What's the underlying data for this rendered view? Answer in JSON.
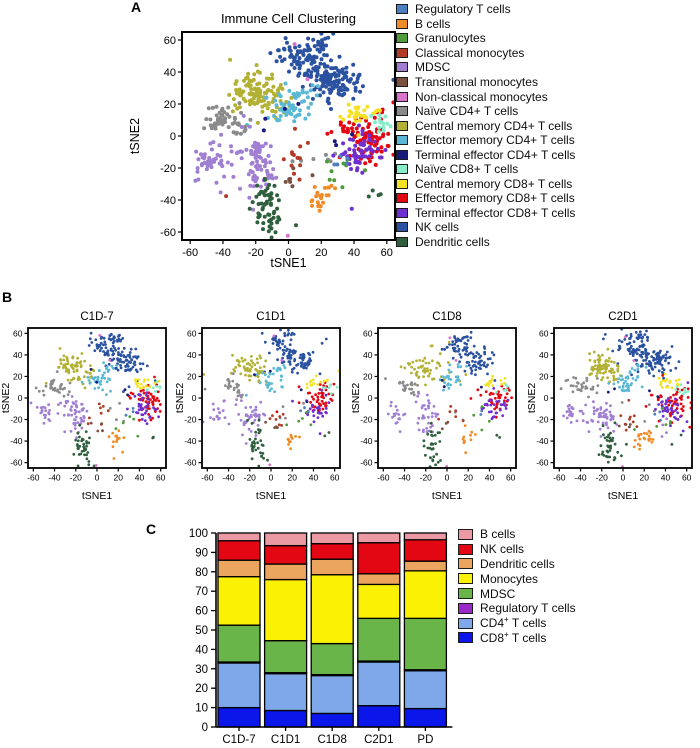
{
  "figure": {
    "panel_a_label": "A",
    "panel_b_label": "B",
    "panel_c_label": "C",
    "background": "#ffffff"
  },
  "cell_colors": {
    "regulatory_t": "#4d7ec0",
    "b_cells": "#f08c28",
    "granulocytes": "#4f9a3b",
    "classical_mono": "#b23b28",
    "mdsc": "#a07fd2",
    "transitional_mono": "#7a5140",
    "nonclassical_mono": "#d873cc",
    "naive_cd4": "#8a8a8a",
    "cm_cd4": "#b3b134",
    "em_cd4": "#5bb8d4",
    "te_cd4": "#181a7a",
    "naive_cd8": "#86ecc8",
    "cm_cd8": "#f5e223",
    "em_cd8": "#e30613",
    "te_cd8": "#6f2fd0",
    "nk": "#2a52a0",
    "dendritic": "#2f5f3d"
  },
  "legend_a": [
    {
      "key": "regulatory_t",
      "label": "Regulatory T cells"
    },
    {
      "key": "b_cells",
      "label": "B cells"
    },
    {
      "key": "granulocytes",
      "label": "Granulocytes"
    },
    {
      "key": "classical_mono",
      "label": "Classical monocytes"
    },
    {
      "key": "mdsc",
      "label": "MDSC"
    },
    {
      "key": "transitional_mono",
      "label": "Transitional monocytes"
    },
    {
      "key": "nonclassical_mono",
      "label": "Non-classical monocytes"
    },
    {
      "key": "naive_cd4",
      "label": "Naïve CD4+ T cells"
    },
    {
      "key": "cm_cd4",
      "label": "Central memory CD4+ T cells"
    },
    {
      "key": "em_cd4",
      "label": "Effector memory CD4+ T cells"
    },
    {
      "key": "te_cd4",
      "label": "Terminal effector CD4+ T cells"
    },
    {
      "key": "naive_cd8",
      "label": "Naïve CD8+ T cells"
    },
    {
      "key": "cm_cd8",
      "label": "Central memory CD8+ T cells"
    },
    {
      "key": "em_cd8",
      "label": "Effector memory CD8+ T cells"
    },
    {
      "key": "te_cd8",
      "label": "Terminal effector CD8+ T cells"
    },
    {
      "key": "nk",
      "label": "NK cells"
    },
    {
      "key": "dendritic",
      "label": "Dendritic cells"
    }
  ],
  "tsne_clusters": [
    [
      "nk",
      6,
      51,
      6,
      4.5,
      50
    ],
    [
      "nk",
      15,
      42,
      5,
      4.5,
      40
    ],
    [
      "nk",
      28,
      34,
      7,
      5.5,
      110
    ],
    [
      "nk",
      19,
      56,
      4,
      3,
      22
    ],
    [
      "cm_cd4",
      -22,
      29,
      8,
      6,
      100
    ],
    [
      "cm_cd4",
      -9,
      20,
      5,
      4,
      22
    ],
    [
      "em_cd4",
      1,
      17,
      7,
      5,
      50
    ],
    [
      "em_cd4",
      9,
      27,
      4,
      3,
      14
    ],
    [
      "naive_cd4",
      -40,
      12,
      6,
      4,
      40
    ],
    [
      "naive_cd4",
      -29,
      6,
      4,
      3,
      12
    ],
    [
      "naive_cd4",
      14,
      -14,
      9,
      6,
      7
    ],
    [
      "mdsc",
      -50,
      -13,
      4,
      5,
      34
    ],
    [
      "mdsc",
      -18,
      -17,
      4.5,
      8,
      65
    ],
    [
      "mdsc",
      -34,
      -24,
      8,
      7,
      13
    ],
    [
      "mdsc",
      -27,
      -7,
      6,
      4,
      8
    ],
    [
      "dendritic",
      -14,
      -42,
      4,
      8,
      55
    ],
    [
      "dendritic",
      -8,
      -57,
      4,
      3,
      9
    ],
    [
      "dendritic",
      50,
      -36,
      4,
      2,
      4
    ],
    [
      "em_cd8",
      49,
      -2,
      6,
      7,
      75
    ],
    [
      "em_cd8",
      34,
      3,
      4,
      4,
      10
    ],
    [
      "te_cd8",
      44,
      -10,
      6,
      6,
      60
    ],
    [
      "cm_cd8",
      41,
      14,
      4,
      3,
      24
    ],
    [
      "cm_cd8",
      52,
      16,
      2,
      2,
      6
    ],
    [
      "naive_cd8",
      56,
      9,
      3,
      3,
      14
    ],
    [
      "b_cells",
      17,
      -40,
      3,
      5,
      20
    ],
    [
      "b_cells",
      25,
      -34,
      2,
      2,
      4
    ],
    [
      "classical_mono",
      4,
      -17,
      6,
      6,
      14
    ],
    [
      "transitional_mono",
      0,
      -27,
      4,
      3,
      7
    ],
    [
      "granulocytes",
      31,
      -22,
      9,
      7,
      9
    ],
    [
      "regulatory_t",
      31,
      -13,
      3,
      3,
      5
    ],
    [
      "te_cd4",
      -7,
      15,
      8,
      6,
      4
    ],
    [
      "te_cd4",
      30,
      2,
      5,
      4,
      3
    ],
    [
      "nonclassical_mono",
      3,
      57,
      0.8,
      0.8,
      1
    ],
    [
      "nonclassical_mono",
      10,
      35,
      0.8,
      0.8,
      1
    ],
    [
      "nonclassical_mono",
      -1,
      -62,
      0.8,
      0.8,
      1
    ]
  ],
  "chart_data": [
    {
      "id": "panel-a-tsne",
      "type": "scatter",
      "title": "Immune Cell Clustering",
      "xlabel": "tSNE1",
      "ylabel": "tSNE2",
      "xlim": [
        -65,
        65
      ],
      "ylim": [
        -65,
        65
      ],
      "ticks": [
        -60,
        -40,
        -20,
        0,
        20,
        40,
        60
      ],
      "grid": false,
      "legend_position": "right",
      "seed": 11,
      "density": 1.0,
      "uses_shared_clusters": true
    },
    {
      "id": "panel-b-tsne-1",
      "type": "scatter",
      "title": "C1D-7",
      "xlabel": "tSNE1",
      "ylabel": "tSNE2",
      "xlim": [
        -65,
        65
      ],
      "ylim": [
        -65,
        65
      ],
      "ticks": [
        -60,
        -40,
        -20,
        0,
        20,
        40,
        60
      ],
      "grid": false,
      "seed": 101,
      "density": 0.6,
      "uses_shared_clusters": true
    },
    {
      "id": "panel-b-tsne-2",
      "type": "scatter",
      "title": "C1D1",
      "xlabel": "tSNE1",
      "ylabel": "tSNE2",
      "xlim": [
        -65,
        65
      ],
      "ylim": [
        -65,
        65
      ],
      "ticks": [
        -60,
        -40,
        -20,
        0,
        20,
        40,
        60
      ],
      "grid": false,
      "seed": 102,
      "density": 0.5,
      "uses_shared_clusters": true
    },
    {
      "id": "panel-b-tsne-3",
      "type": "scatter",
      "title": "C1D8",
      "xlabel": "tSNE1",
      "ylabel": "tSNE2",
      "xlim": [
        -65,
        65
      ],
      "ylim": [
        -65,
        65
      ],
      "ticks": [
        -60,
        -40,
        -20,
        0,
        20,
        40,
        60
      ],
      "grid": false,
      "seed": 103,
      "density": 0.45,
      "uses_shared_clusters": true
    },
    {
      "id": "panel-b-tsne-4",
      "type": "scatter",
      "title": "C2D1",
      "xlabel": "tSNE1",
      "ylabel": "tSNE2",
      "xlim": [
        -65,
        65
      ],
      "ylim": [
        -65,
        65
      ],
      "ticks": [
        -60,
        -40,
        -20,
        0,
        20,
        40,
        60
      ],
      "grid": false,
      "seed": 104,
      "density": 0.62,
      "uses_shared_clusters": true,
      "extra_clusters": [
        [
          "b_cells",
          25,
          -37,
          4,
          3,
          12
        ],
        [
          "nk",
          33,
          38,
          6,
          5,
          20
        ],
        [
          "mdsc",
          34,
          -24,
          5,
          5,
          6
        ]
      ]
    },
    {
      "id": "panel-c-bars",
      "type": "bar",
      "stacked": true,
      "categories": [
        "C1D-7",
        "C1D1",
        "C1D8",
        "C2D1",
        "PD"
      ],
      "ylim": [
        0,
        100
      ],
      "ytick_step": 10,
      "grid": false,
      "legend_position": "right",
      "series_bottom_to_top": [
        {
          "name": "CD8+ T cells",
          "sup": true,
          "color": "#0b16ea",
          "values": [
            10,
            8.5,
            7,
            11,
            9.5
          ]
        },
        {
          "name": "CD4+ T cells",
          "sup": true,
          "color": "#7fa8ea",
          "values": [
            23,
            19,
            19.5,
            22.5,
            19.5
          ]
        },
        {
          "name": "Regulatory T cells",
          "sup": false,
          "color": "#9a2bc8",
          "values": [
            0.5,
            0.5,
            0.5,
            0.5,
            0.5
          ]
        },
        {
          "name": "MDSC",
          "sup": false,
          "color": "#69b54a",
          "values": [
            19,
            16.5,
            16,
            22,
            26.5
          ]
        },
        {
          "name": "Monocytes",
          "sup": false,
          "color": "#fbf104",
          "values": [
            25,
            31.5,
            35.5,
            17.5,
            24.5
          ]
        },
        {
          "name": "Dendritic cells",
          "sup": false,
          "color": "#eba55e",
          "values": [
            8.5,
            8,
            8,
            5.5,
            5
          ]
        },
        {
          "name": "NK cells",
          "sup": false,
          "color": "#e30613",
          "values": [
            10,
            9.5,
            8,
            16,
            11
          ]
        },
        {
          "name": "B cells",
          "sup": false,
          "color": "#eb99a2",
          "values": [
            4,
            6.5,
            5.5,
            5,
            3.5
          ]
        }
      ]
    }
  ]
}
